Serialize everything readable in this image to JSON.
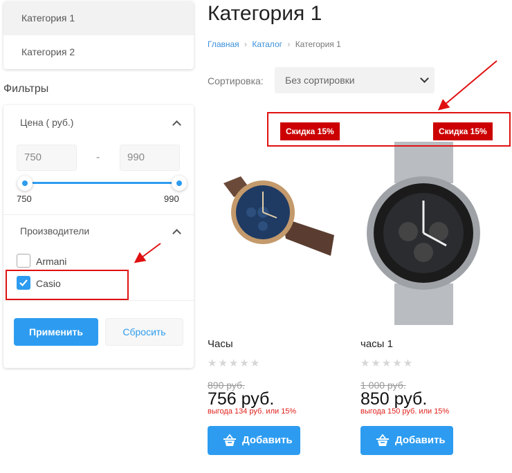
{
  "sidebar": {
    "categories": [
      {
        "label": "Категория 1",
        "active": true
      },
      {
        "label": "Категория 2",
        "active": false
      }
    ]
  },
  "filters": {
    "title": "Фильтры",
    "price": {
      "title": "Цена ( руб.)",
      "min_value": "750",
      "max_value": "990",
      "separator": "-",
      "min_label": "750",
      "max_label": "990"
    },
    "brands": {
      "title": "Производители",
      "items": [
        {
          "label": "Armani",
          "checked": false
        },
        {
          "label": "Casio",
          "checked": true
        }
      ]
    },
    "apply_label": "Применить",
    "reset_label": "Сбросить"
  },
  "main": {
    "title": "Категория 1",
    "breadcrumb": [
      {
        "label": "Главная"
      },
      {
        "label": "Каталог"
      },
      {
        "label": "Категория 1"
      }
    ],
    "sort_label": "Сортировка:",
    "sort_value": "Без сортировки",
    "products": [
      {
        "badge": "Скидка 15%",
        "name": "Часы",
        "rating": 0,
        "old_price": "890 руб.",
        "price": "756 руб.",
        "saving": "выгода 134 руб. или 15%",
        "add_label": "Добавить"
      },
      {
        "badge": "Скидка 15%",
        "name": "часы 1",
        "rating": 0,
        "old_price": "1 000 руб.",
        "price": "850 руб.",
        "saving": "выгода 150 руб. или 15%",
        "add_label": "Добавить"
      }
    ]
  },
  "colors": {
    "accent": "#2d9cf0",
    "badge": "#cc0000",
    "annotation": "#e01010",
    "saving": "#e0201b"
  }
}
